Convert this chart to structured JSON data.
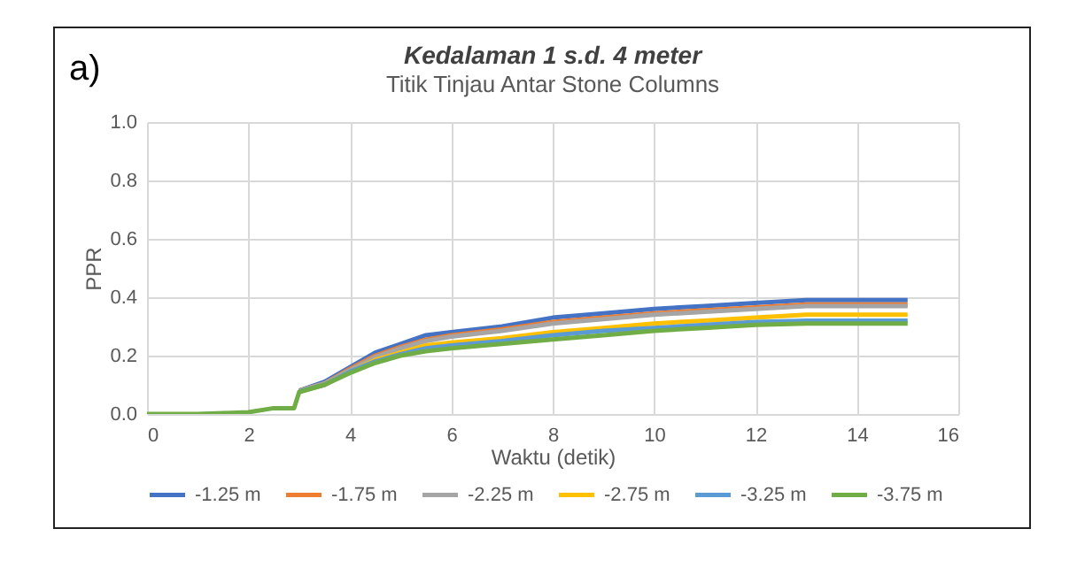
{
  "chart_data": {
    "type": "line",
    "title": "Kedalaman 1 s.d. 4 meter",
    "subtitle": "Titik Tinjau Antar Stone Columns",
    "xlabel": "Waktu (detik)",
    "ylabel": "PPR",
    "annotations": [
      "a)"
    ],
    "x": [
      0,
      1,
      1.5,
      2,
      2.5,
      2.9,
      3,
      3.5,
      4,
      4.5,
      5,
      5.5,
      6,
      7,
      8,
      9,
      10,
      11,
      12,
      13,
      14,
      15
    ],
    "series": [
      {
        "name": "-1.25 m",
        "color": "#4472c4",
        "values": [
          null,
          null,
          null,
          null,
          null,
          null,
          0.08,
          0.11,
          0.16,
          0.21,
          0.24,
          0.27,
          0.28,
          0.3,
          0.33,
          0.345,
          0.36,
          0.37,
          0.38,
          0.39,
          0.39,
          0.39
        ]
      },
      {
        "name": "-1.75 m",
        "color": "#ed7d31",
        "values": [
          null,
          null,
          null,
          null,
          null,
          null,
          0.08,
          0.105,
          0.155,
          0.2,
          0.23,
          0.255,
          0.27,
          0.29,
          0.315,
          0.33,
          0.345,
          0.355,
          0.365,
          0.375,
          0.375,
          0.375
        ]
      },
      {
        "name": "-2.25 m",
        "color": "#a5a5a5",
        "values": [
          null,
          null,
          null,
          null,
          null,
          null,
          0.08,
          0.105,
          0.15,
          0.195,
          0.225,
          0.25,
          0.265,
          0.285,
          0.31,
          0.325,
          0.34,
          0.35,
          0.36,
          0.37,
          0.37,
          0.37
        ]
      },
      {
        "name": "-2.75 m",
        "color": "#ffc000",
        "values": [
          null,
          null,
          null,
          null,
          null,
          null,
          0.078,
          0.1,
          0.145,
          0.185,
          0.21,
          0.235,
          0.245,
          0.26,
          0.28,
          0.295,
          0.31,
          0.32,
          0.33,
          0.34,
          0.34,
          0.34
        ]
      },
      {
        "name": "-3.25 m",
        "color": "#5b9bd5",
        "values": [
          null,
          null,
          null,
          null,
          null,
          null,
          0.078,
          0.1,
          0.145,
          0.18,
          0.205,
          0.225,
          0.235,
          0.25,
          0.27,
          0.285,
          0.295,
          0.305,
          0.315,
          0.32,
          0.32,
          0.32
        ]
      },
      {
        "name": "-3.75 m",
        "color": "#70ad47",
        "values": [
          0,
          0,
          0.003,
          0.006,
          0.02,
          0.02,
          0.075,
          0.1,
          0.14,
          0.175,
          0.2,
          0.215,
          0.225,
          0.24,
          0.255,
          0.27,
          0.285,
          0.295,
          0.305,
          0.31,
          0.31,
          0.31
        ]
      }
    ],
    "xlim": [
      0,
      16
    ],
    "xticks": [
      0,
      2,
      4,
      6,
      8,
      10,
      12,
      14,
      16
    ],
    "ylim": [
      0,
      1
    ],
    "yticks": [
      {
        "value": 0,
        "label": "0.0"
      },
      {
        "value": 0.2,
        "label": "0.2"
      },
      {
        "value": 0.4,
        "label": "0.4"
      },
      {
        "value": 0.6,
        "label": "0.6"
      },
      {
        "value": 0.8,
        "label": "0.8"
      },
      {
        "value": 1,
        "label": "1.0"
      }
    ],
    "grid": true,
    "legend": "bottom"
  }
}
